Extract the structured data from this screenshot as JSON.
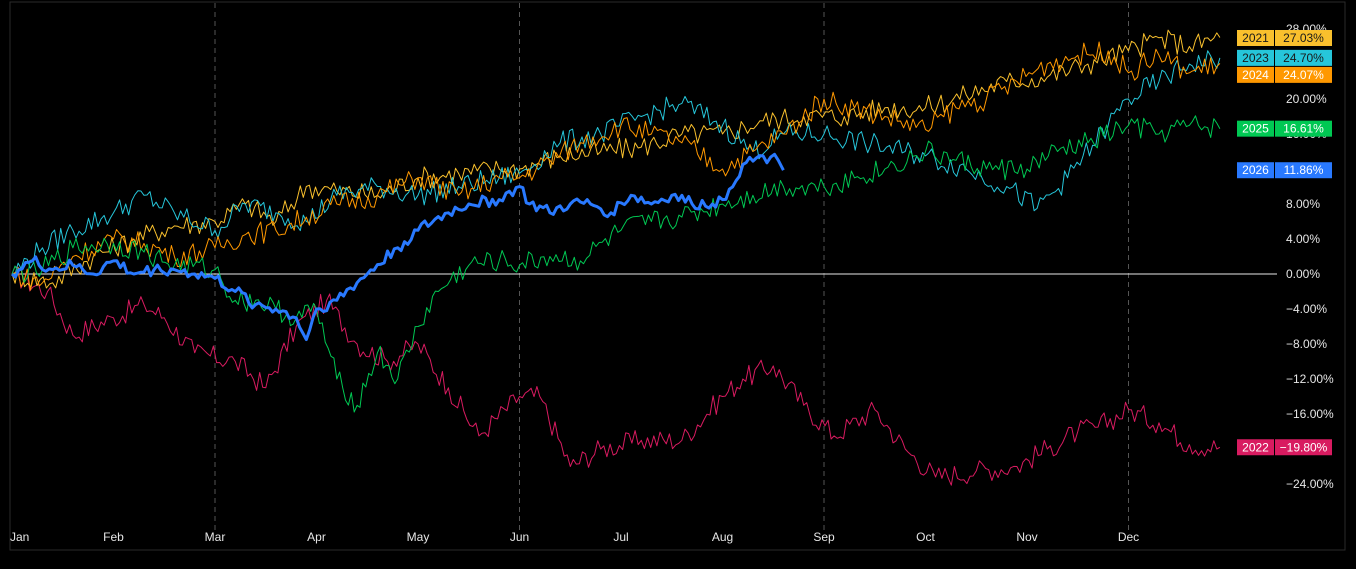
{
  "chart_data": {
    "type": "line",
    "title": "",
    "xlabel": "",
    "ylabel": "",
    "x_unit": "month",
    "xlim": [
      0,
      12
    ],
    "ylim": [
      -24,
      28
    ],
    "y_ticks": [
      {
        "value": 28,
        "label": "28.00%"
      },
      {
        "value": 20,
        "label": "20.00%"
      },
      {
        "value": 16,
        "label": "16.00%"
      },
      {
        "value": 8,
        "label": "8.00%"
      },
      {
        "value": 4,
        "label": "4.00%"
      },
      {
        "value": 0,
        "label": "0.00%"
      },
      {
        "value": -4,
        "label": "−4.00%"
      },
      {
        "value": -8,
        "label": "−8.00%"
      },
      {
        "value": -12,
        "label": "−12.00%"
      },
      {
        "value": -16,
        "label": "−16.00%"
      },
      {
        "value": -24,
        "label": "−24.00%"
      }
    ],
    "x_ticks": [
      {
        "value": 0,
        "label": "Jan"
      },
      {
        "value": 1,
        "label": "Feb"
      },
      {
        "value": 2,
        "label": "Mar"
      },
      {
        "value": 3,
        "label": "Apr"
      },
      {
        "value": 4,
        "label": "May"
      },
      {
        "value": 5,
        "label": "Jun"
      },
      {
        "value": 6,
        "label": "Jul"
      },
      {
        "value": 7,
        "label": "Aug"
      },
      {
        "value": 8,
        "label": "Sep"
      },
      {
        "value": 9,
        "label": "Oct"
      },
      {
        "value": 10,
        "label": "Nov"
      },
      {
        "value": 11,
        "label": "Dec"
      }
    ],
    "vertical_dashed_gridlines_at": [
      2,
      5,
      8,
      11
    ],
    "zero_line": true,
    "legend": "right-side value badges",
    "series": [
      {
        "name": "2022",
        "color": "#d81b60",
        "end_label": "−19.80%",
        "x": [
          0,
          0.35,
          0.6,
          1,
          1.3,
          1.5,
          1.8,
          2.2,
          2.5,
          2.8,
          3.1,
          3.4,
          3.7,
          4,
          4.3,
          4.6,
          5,
          5.2,
          5.5,
          5.8,
          6.2,
          6.6,
          7,
          7.2,
          7.5,
          7.8,
          8.1,
          8.5,
          8.8,
          9.1,
          9.5,
          9.9,
          10.2,
          10.5,
          10.7,
          11,
          11.3,
          11.6,
          11.9
        ],
        "y": [
          0,
          -2,
          -7,
          -5,
          -3.5,
          -5,
          -9,
          -10,
          -13,
          -6,
          -3,
          -8,
          -10,
          -8,
          -13,
          -18.5,
          -14,
          -14,
          -22,
          -20,
          -19,
          -19,
          -14,
          -12,
          -10.5,
          -15,
          -18.5,
          -15.5,
          -20,
          -23.2,
          -22.5,
          -22,
          -20,
          -18,
          -17.5,
          -15.5,
          -17,
          -19.5,
          -19.8
        ]
      },
      {
        "name": "2021",
        "color": "#f9c02d",
        "end_label": "27.03%",
        "x": [
          0,
          0.4,
          0.8,
          1.2,
          1.6,
          2,
          2.3,
          2.6,
          2.9,
          3.2,
          3.6,
          4,
          4.4,
          4.8,
          5,
          5.4,
          5.8,
          6.2,
          6.6,
          7,
          7.4,
          7.8,
          8.2,
          8.6,
          9,
          9.4,
          9.8,
          10.2,
          10.6,
          11,
          11.3,
          11.6,
          11.9
        ],
        "y": [
          0,
          -1,
          2,
          4,
          5.5,
          6,
          8,
          6,
          10,
          9.5,
          9,
          11,
          11.5,
          12,
          12,
          13.5,
          14,
          14.5,
          16,
          16,
          17.5,
          18,
          18,
          19,
          19,
          20.5,
          22,
          22.5,
          24,
          25.5,
          27,
          26,
          27.03
        ]
      },
      {
        "name": "2023",
        "color": "#26c6da",
        "end_label": "24.70%",
        "x": [
          0,
          0.3,
          0.6,
          1,
          1.3,
          1.6,
          2,
          2.3,
          2.6,
          2.9,
          3.2,
          3.6,
          4,
          4.4,
          4.8,
          5,
          5.4,
          5.8,
          6.2,
          6.6,
          7,
          7.3,
          7.6,
          8,
          8.4,
          8.8,
          9,
          9.4,
          9.8,
          10.1,
          10.4,
          10.8,
          11,
          11.3,
          11.6,
          11.9
        ],
        "y": [
          0,
          3,
          5,
          7,
          9,
          7,
          5,
          8,
          7,
          6,
          9,
          10,
          9,
          10,
          11,
          11.5,
          15,
          16,
          18,
          19.5,
          17,
          14,
          16,
          16,
          15,
          14,
          13.5,
          12,
          10,
          7.5,
          11,
          17,
          20,
          22,
          24,
          24.7
        ]
      },
      {
        "name": "2024",
        "color": "#ff9800",
        "end_label": "24.07%",
        "x": [
          0,
          0.3,
          0.6,
          1,
          1.3,
          1.6,
          2,
          2.3,
          2.6,
          2.9,
          3.2,
          3.6,
          4,
          4.4,
          4.8,
          5,
          5.3,
          5.6,
          6,
          6.3,
          6.6,
          7,
          7.3,
          7.6,
          8,
          8.3,
          8.6,
          9,
          9.3,
          9.6,
          9.9,
          10.2,
          10.5,
          10.8,
          11,
          11.3,
          11.6,
          11.9
        ],
        "y": [
          0,
          -1,
          2,
          4,
          3.5,
          2,
          3,
          4.5,
          5,
          6.5,
          8,
          9,
          11,
          9,
          11,
          11,
          13,
          15,
          17,
          16,
          15,
          12,
          14,
          16,
          20,
          19,
          18,
          16.5,
          19,
          20,
          22,
          24,
          25,
          25.5,
          23,
          25,
          23,
          24.07
        ]
      },
      {
        "name": "2025",
        "color": "#00c853",
        "end_label": "16.61%",
        "x": [
          0,
          0.3,
          0.6,
          1,
          1.3,
          1.6,
          2,
          2.2,
          2.4,
          2.6,
          2.8,
          3,
          3.2,
          3.4,
          3.6,
          3.8,
          4,
          4.2,
          4.5,
          4.8,
          5,
          5.3,
          5.6,
          6,
          6.3,
          6.6,
          7,
          7.3,
          7.6,
          8,
          8.3,
          8.6,
          9,
          9.3,
          9.6,
          10,
          10.3,
          10.6,
          11,
          11.3,
          11.6,
          11.9
        ],
        "y": [
          0,
          0.5,
          3,
          3.5,
          2.5,
          1,
          0.5,
          -3,
          -3,
          -4,
          -5,
          -4,
          -12,
          -15,
          -9,
          -12,
          -6,
          -2,
          1,
          1.5,
          1,
          2,
          1.5,
          5,
          6,
          6.5,
          8,
          9,
          10,
          10,
          11,
          12,
          14,
          13,
          12,
          12,
          14,
          15,
          17,
          16,
          17,
          16.61
        ]
      },
      {
        "name": "2026",
        "color": "#2979ff",
        "end_label": "11.86%",
        "emphasis": true,
        "x": [
          0,
          0.2,
          0.4,
          0.6,
          0.8,
          1,
          1.2,
          1.4,
          1.6,
          1.8,
          2,
          2.2,
          2.4,
          2.6,
          2.8,
          2.9,
          3,
          3.2,
          3.5,
          3.8,
          4,
          4.3,
          4.5,
          4.8,
          5,
          5.1,
          5.3,
          5.5,
          5.7,
          5.9,
          6.1,
          6.3,
          6.5,
          6.7,
          6.9,
          7,
          7.2,
          7.4,
          7.55,
          7.6
        ],
        "y": [
          0,
          1.5,
          0.5,
          1,
          0,
          1.5,
          0,
          0.5,
          0.5,
          0,
          -0.5,
          -2,
          -3.5,
          -4,
          -5,
          -7.5,
          -4,
          -3,
          0,
          3,
          5,
          7,
          8,
          8.5,
          10,
          8,
          7,
          8,
          8,
          7,
          9,
          8,
          9,
          8,
          8,
          8.5,
          12.5,
          13.5,
          13,
          11.86
        ]
      }
    ]
  }
}
